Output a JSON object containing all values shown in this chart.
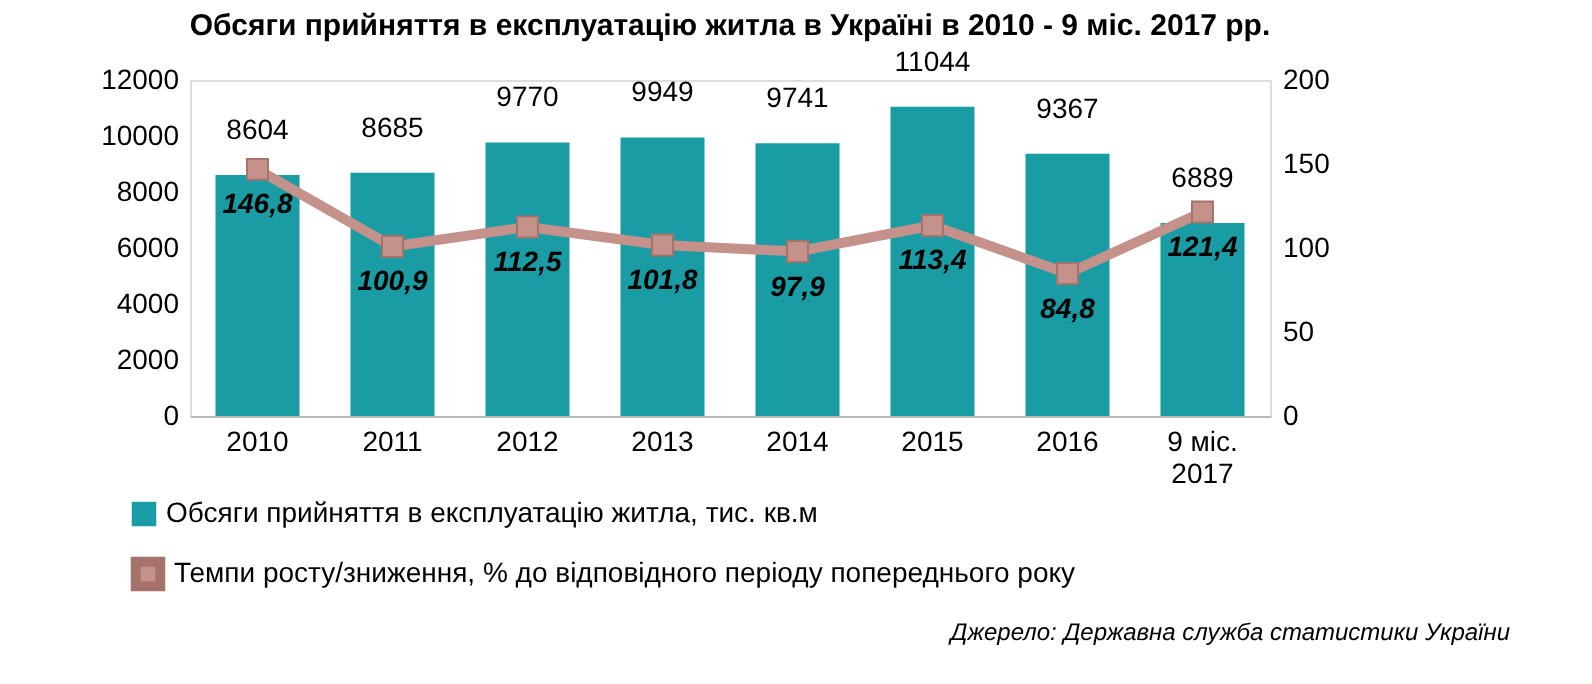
{
  "chart_data": {
    "type": "bar",
    "title": "Обсяги прийняття в експлуатацію житла в Україні в 2010 - 9 міс. 2017 рр.",
    "categories": [
      "2010",
      "2011",
      "2012",
      "2013",
      "2014",
      "2015",
      "2016",
      "9 міс.\n2017"
    ],
    "series": [
      {
        "name": "Обсяги прийняття в експлуатацію житла, тис. кв.м",
        "color": "#1a9ca4",
        "values": [
          8604,
          8685,
          9770,
          9949,
          9741,
          11044,
          9367,
          6889
        ],
        "value_labels": [
          "8604",
          "8685",
          "9770",
          "9949",
          "9741",
          "11044",
          "9367",
          "6889"
        ]
      },
      {
        "name": "Темпи росту/зниження, % до відповідного періоду попереднього року",
        "type": "line",
        "axis": "y2",
        "color": "#c4918b",
        "marker": "square",
        "values": [
          146.8,
          100.9,
          112.5,
          101.8,
          97.9,
          113.4,
          84.8,
          121.4
        ],
        "value_labels": [
          "146,8",
          "100,9",
          "112,5",
          "101,8",
          "97,9",
          "113,4",
          "84,8",
          "121,4"
        ]
      }
    ],
    "ylim": [
      0,
      12000
    ],
    "yticks": [
      0,
      2000,
      4000,
      6000,
      8000,
      10000,
      12000
    ],
    "y2lim": [
      0,
      200
    ],
    "y2ticks": [
      0,
      50,
      100,
      150,
      200
    ],
    "grid": false,
    "legend": "bottom",
    "annotations": [
      "Джерело: Державна служба статистики України"
    ]
  }
}
